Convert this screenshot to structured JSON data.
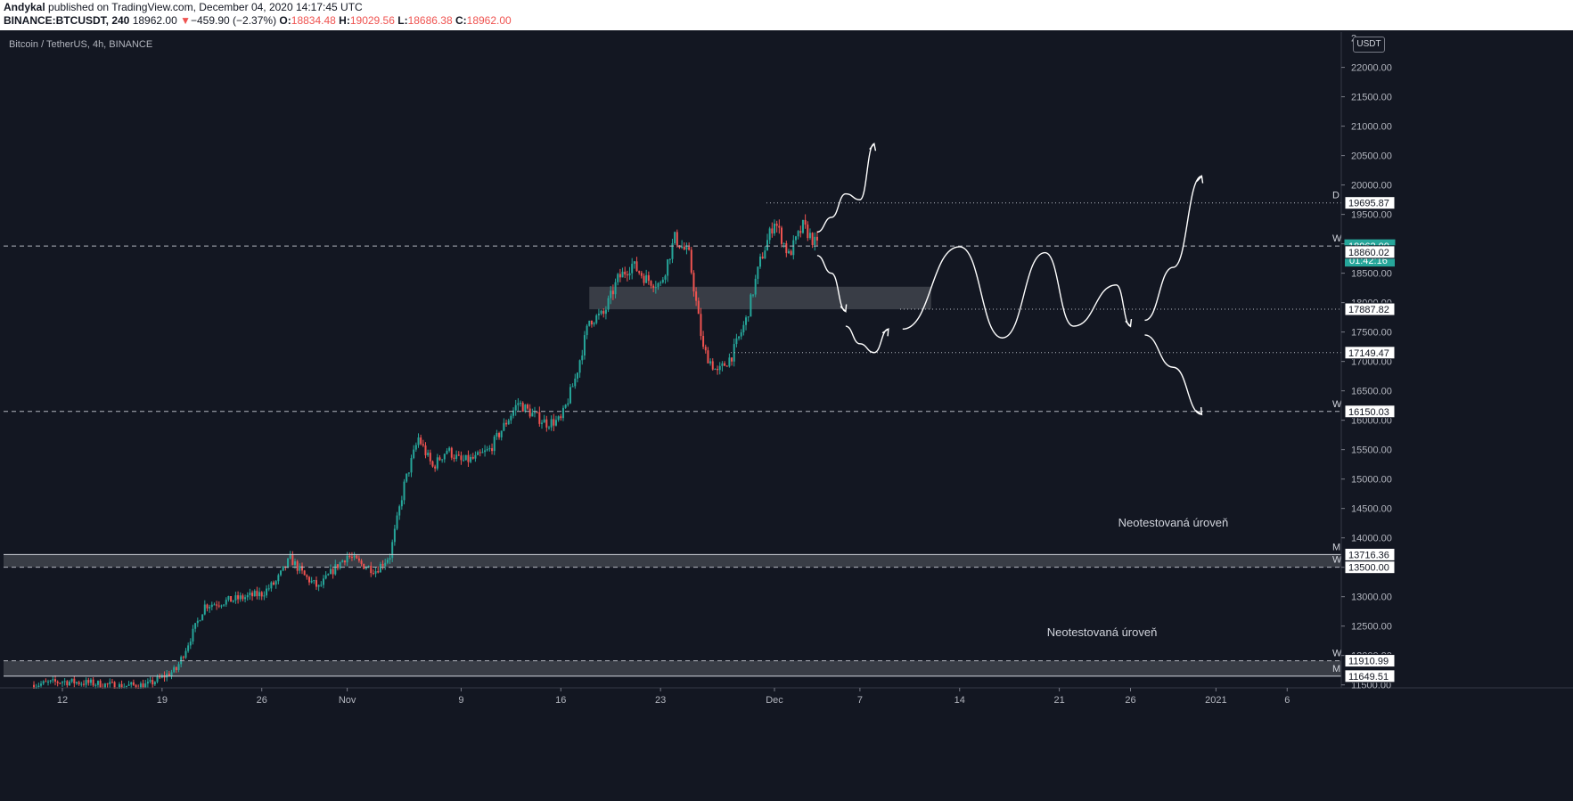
{
  "header": {
    "author": "Andykal",
    "published": "published on TradingView.com, December 04, 2020 14:17:45 UTC",
    "symbol": "BINANCE:BTCUSDT, 240",
    "last": "18962.00",
    "change_arrow": "▼",
    "change": "−459.90 (−2.37%)",
    "o_label": "O:",
    "o_value": "18834.48",
    "h_label": "H:",
    "h_value": "19029.56",
    "l_label": "L:",
    "l_value": "18686.38",
    "c_label": "C:",
    "c_value": "18962.00"
  },
  "chart_label": "Bitcoin / TetherUS, 4h, BINANCE",
  "currency": "USDT",
  "colors": {
    "background": "#131722",
    "up": "#26a69a",
    "down": "#ef5350",
    "axis_text": "#b2b5be",
    "grid": "#1e222d",
    "zone": "#41444c",
    "drawing": "#ffffff",
    "last_price_tag": "#26a69a"
  },
  "chart_data": {
    "type": "candlestick",
    "title": "Bitcoin / TetherUS, 4h, BINANCE",
    "ylim": [
      11450,
      22600
    ],
    "y_ticks": [
      "11500.00",
      "12000.00",
      "12500.00",
      "13000.00",
      "13500.00",
      "14000.00",
      "14500.00",
      "15000.00",
      "15500.00",
      "16000.00",
      "16500.00",
      "17000.00",
      "17500.00",
      "18000.00",
      "18500.00",
      "19000.00",
      "19500.00",
      "20000.00",
      "20500.00",
      "21000.00",
      "21500.00",
      "22000.00"
    ],
    "top_tick_partial": "2",
    "x_ticks": [
      {
        "label": "12",
        "date": "2020-10-12"
      },
      {
        "label": "19",
        "date": "2020-10-19"
      },
      {
        "label": "26",
        "date": "2020-10-26"
      },
      {
        "label": "Nov",
        "date": "2020-11-01"
      },
      {
        "label": "9",
        "date": "2020-11-09"
      },
      {
        "label": "16",
        "date": "2020-11-16"
      },
      {
        "label": "23",
        "date": "2020-11-23"
      },
      {
        "label": "Dec",
        "date": "2020-12-01"
      },
      {
        "label": "7",
        "date": "2020-12-07"
      },
      {
        "label": "14",
        "date": "2020-12-14"
      },
      {
        "label": "21",
        "date": "2020-12-21"
      },
      {
        "label": "26",
        "date": "2020-12-26"
      },
      {
        "label": "2021",
        "date": "2021-01-01"
      },
      {
        "label": "6",
        "date": "2021-01-06"
      }
    ],
    "path_points": [
      [
        "2020-10-10",
        11500
      ],
      [
        "2020-10-12",
        11560
      ],
      [
        "2020-10-14",
        11530
      ],
      [
        "2020-10-16",
        11480
      ],
      [
        "2020-10-18",
        11500
      ],
      [
        "2020-10-20",
        11760
      ],
      [
        "2020-10-21",
        12300
      ],
      [
        "2020-10-22",
        12850
      ],
      [
        "2020-10-24",
        12950
      ],
      [
        "2020-10-26",
        13050
      ],
      [
        "2020-10-27",
        13250
      ],
      [
        "2020-10-28",
        13650
      ],
      [
        "2020-10-29",
        13350
      ],
      [
        "2020-10-30",
        13150
      ],
      [
        "2020-10-31",
        13450
      ],
      [
        "2020-11-01",
        13700
      ],
      [
        "2020-11-02",
        13550
      ],
      [
        "2020-11-03",
        13450
      ],
      [
        "2020-11-04",
        13700
      ],
      [
        "2020-11-05",
        14900
      ],
      [
        "2020-11-06",
        15700
      ],
      [
        "2020-11-07",
        15200
      ],
      [
        "2020-11-08",
        15500
      ],
      [
        "2020-11-09",
        15300
      ],
      [
        "2020-11-10",
        15350
      ],
      [
        "2020-11-11",
        15500
      ],
      [
        "2020-11-12",
        15900
      ],
      [
        "2020-11-13",
        16300
      ],
      [
        "2020-11-14",
        16100
      ],
      [
        "2020-11-15",
        15950
      ],
      [
        "2020-11-16",
        16000
      ],
      [
        "2020-11-17",
        16700
      ],
      [
        "2020-11-18",
        17700
      ],
      [
        "2020-11-19",
        17800
      ],
      [
        "2020-11-20",
        18400
      ],
      [
        "2020-11-21",
        18650
      ],
      [
        "2020-11-22",
        18400
      ],
      [
        "2020-11-23",
        18300
      ],
      [
        "2020-11-24",
        19100
      ],
      [
        "2020-11-25",
        18800
      ],
      [
        "2020-11-26",
        17200
      ],
      [
        "2020-11-27",
        16800
      ],
      [
        "2020-11-28",
        17100
      ],
      [
        "2020-11-29",
        17700
      ],
      [
        "2020-11-30",
        18700
      ],
      [
        "2020-12-01",
        19400
      ],
      [
        "2020-12-02",
        18800
      ],
      [
        "2020-12-03",
        19300
      ],
      [
        "2020-12-04",
        18962
      ]
    ],
    "horizontal_levels": [
      {
        "price": 19695.87,
        "label": "19695.87",
        "marker": "D",
        "style": "dotted"
      },
      {
        "price": 18962.0,
        "label": "18962.00",
        "marker": "W",
        "style": "dashed",
        "current": true
      },
      {
        "price": 18860.02,
        "label": "18860.02",
        "style": "none"
      },
      {
        "price": 17887.82,
        "label": "17887.82",
        "style": "dotted"
      },
      {
        "price": 17149.47,
        "label": "17149.47",
        "style": "dotted"
      },
      {
        "price": 16150.03,
        "label": "16150.03",
        "marker": "W",
        "style": "dashed"
      },
      {
        "price": 13716.36,
        "label": "13716.36",
        "marker": "M",
        "style": "solid"
      },
      {
        "price": 13500.0,
        "label": "13500.00",
        "marker": "W",
        "style": "dashed"
      },
      {
        "price": 11910.99,
        "label": "11910.99",
        "marker": "W",
        "style": "dashed"
      },
      {
        "price": 11649.51,
        "label": "11649.51",
        "marker": "M",
        "style": "solid"
      }
    ],
    "countdown": "01:42:16",
    "zones": [
      {
        "from": "2020-11-18",
        "to": "2020-12-12",
        "low": 17887,
        "high": 18270
      },
      {
        "from": "2020-10-06",
        "to": "2021-01-11",
        "low": 13500,
        "high": 13716
      },
      {
        "from": "2020-10-06",
        "to": "2021-01-11",
        "low": 11649,
        "high": 11911
      }
    ],
    "annotations": [
      {
        "text": "Neotestovaná úroveň",
        "date": "2020-12-29",
        "price": 14190
      },
      {
        "text": "Neotestovaná úroveň",
        "date": "2020-12-24",
        "price": 12330
      }
    ],
    "drawings": [
      {
        "id": "path-up-short",
        "points": [
          [
            "2020-12-04",
            19200
          ],
          [
            "2020-12-05",
            19450
          ],
          [
            "2020-12-06",
            19850
          ],
          [
            "2020-12-07",
            19750
          ],
          [
            "2020-12-08",
            20700
          ]
        ]
      },
      {
        "id": "path-down-short",
        "points": [
          [
            "2020-12-04",
            18800
          ],
          [
            "2020-12-05",
            18500
          ],
          [
            "2020-12-06",
            17850
          ]
        ]
      },
      {
        "id": "path-dip",
        "points": [
          [
            "2020-12-06",
            17600
          ],
          [
            "2020-12-07",
            17300
          ],
          [
            "2020-12-08",
            17150
          ],
          [
            "2020-12-09",
            17550
          ]
        ]
      },
      {
        "id": "path-range",
        "points": [
          [
            "2020-12-10",
            17550
          ],
          [
            "2020-12-14",
            18950
          ],
          [
            "2020-12-17",
            17400
          ],
          [
            "2020-12-20",
            18850
          ],
          [
            "2020-12-22",
            17600
          ],
          [
            "2020-12-25",
            18300
          ],
          [
            "2020-12-26",
            17600
          ]
        ]
      },
      {
        "id": "path-up-long",
        "points": [
          [
            "2020-12-27",
            17700
          ],
          [
            "2020-12-29",
            18600
          ],
          [
            "2020-12-31",
            20150
          ]
        ]
      },
      {
        "id": "path-down-long",
        "points": [
          [
            "2020-12-27",
            17450
          ],
          [
            "2020-12-29",
            16900
          ],
          [
            "2020-12-31",
            16100
          ]
        ]
      }
    ]
  }
}
